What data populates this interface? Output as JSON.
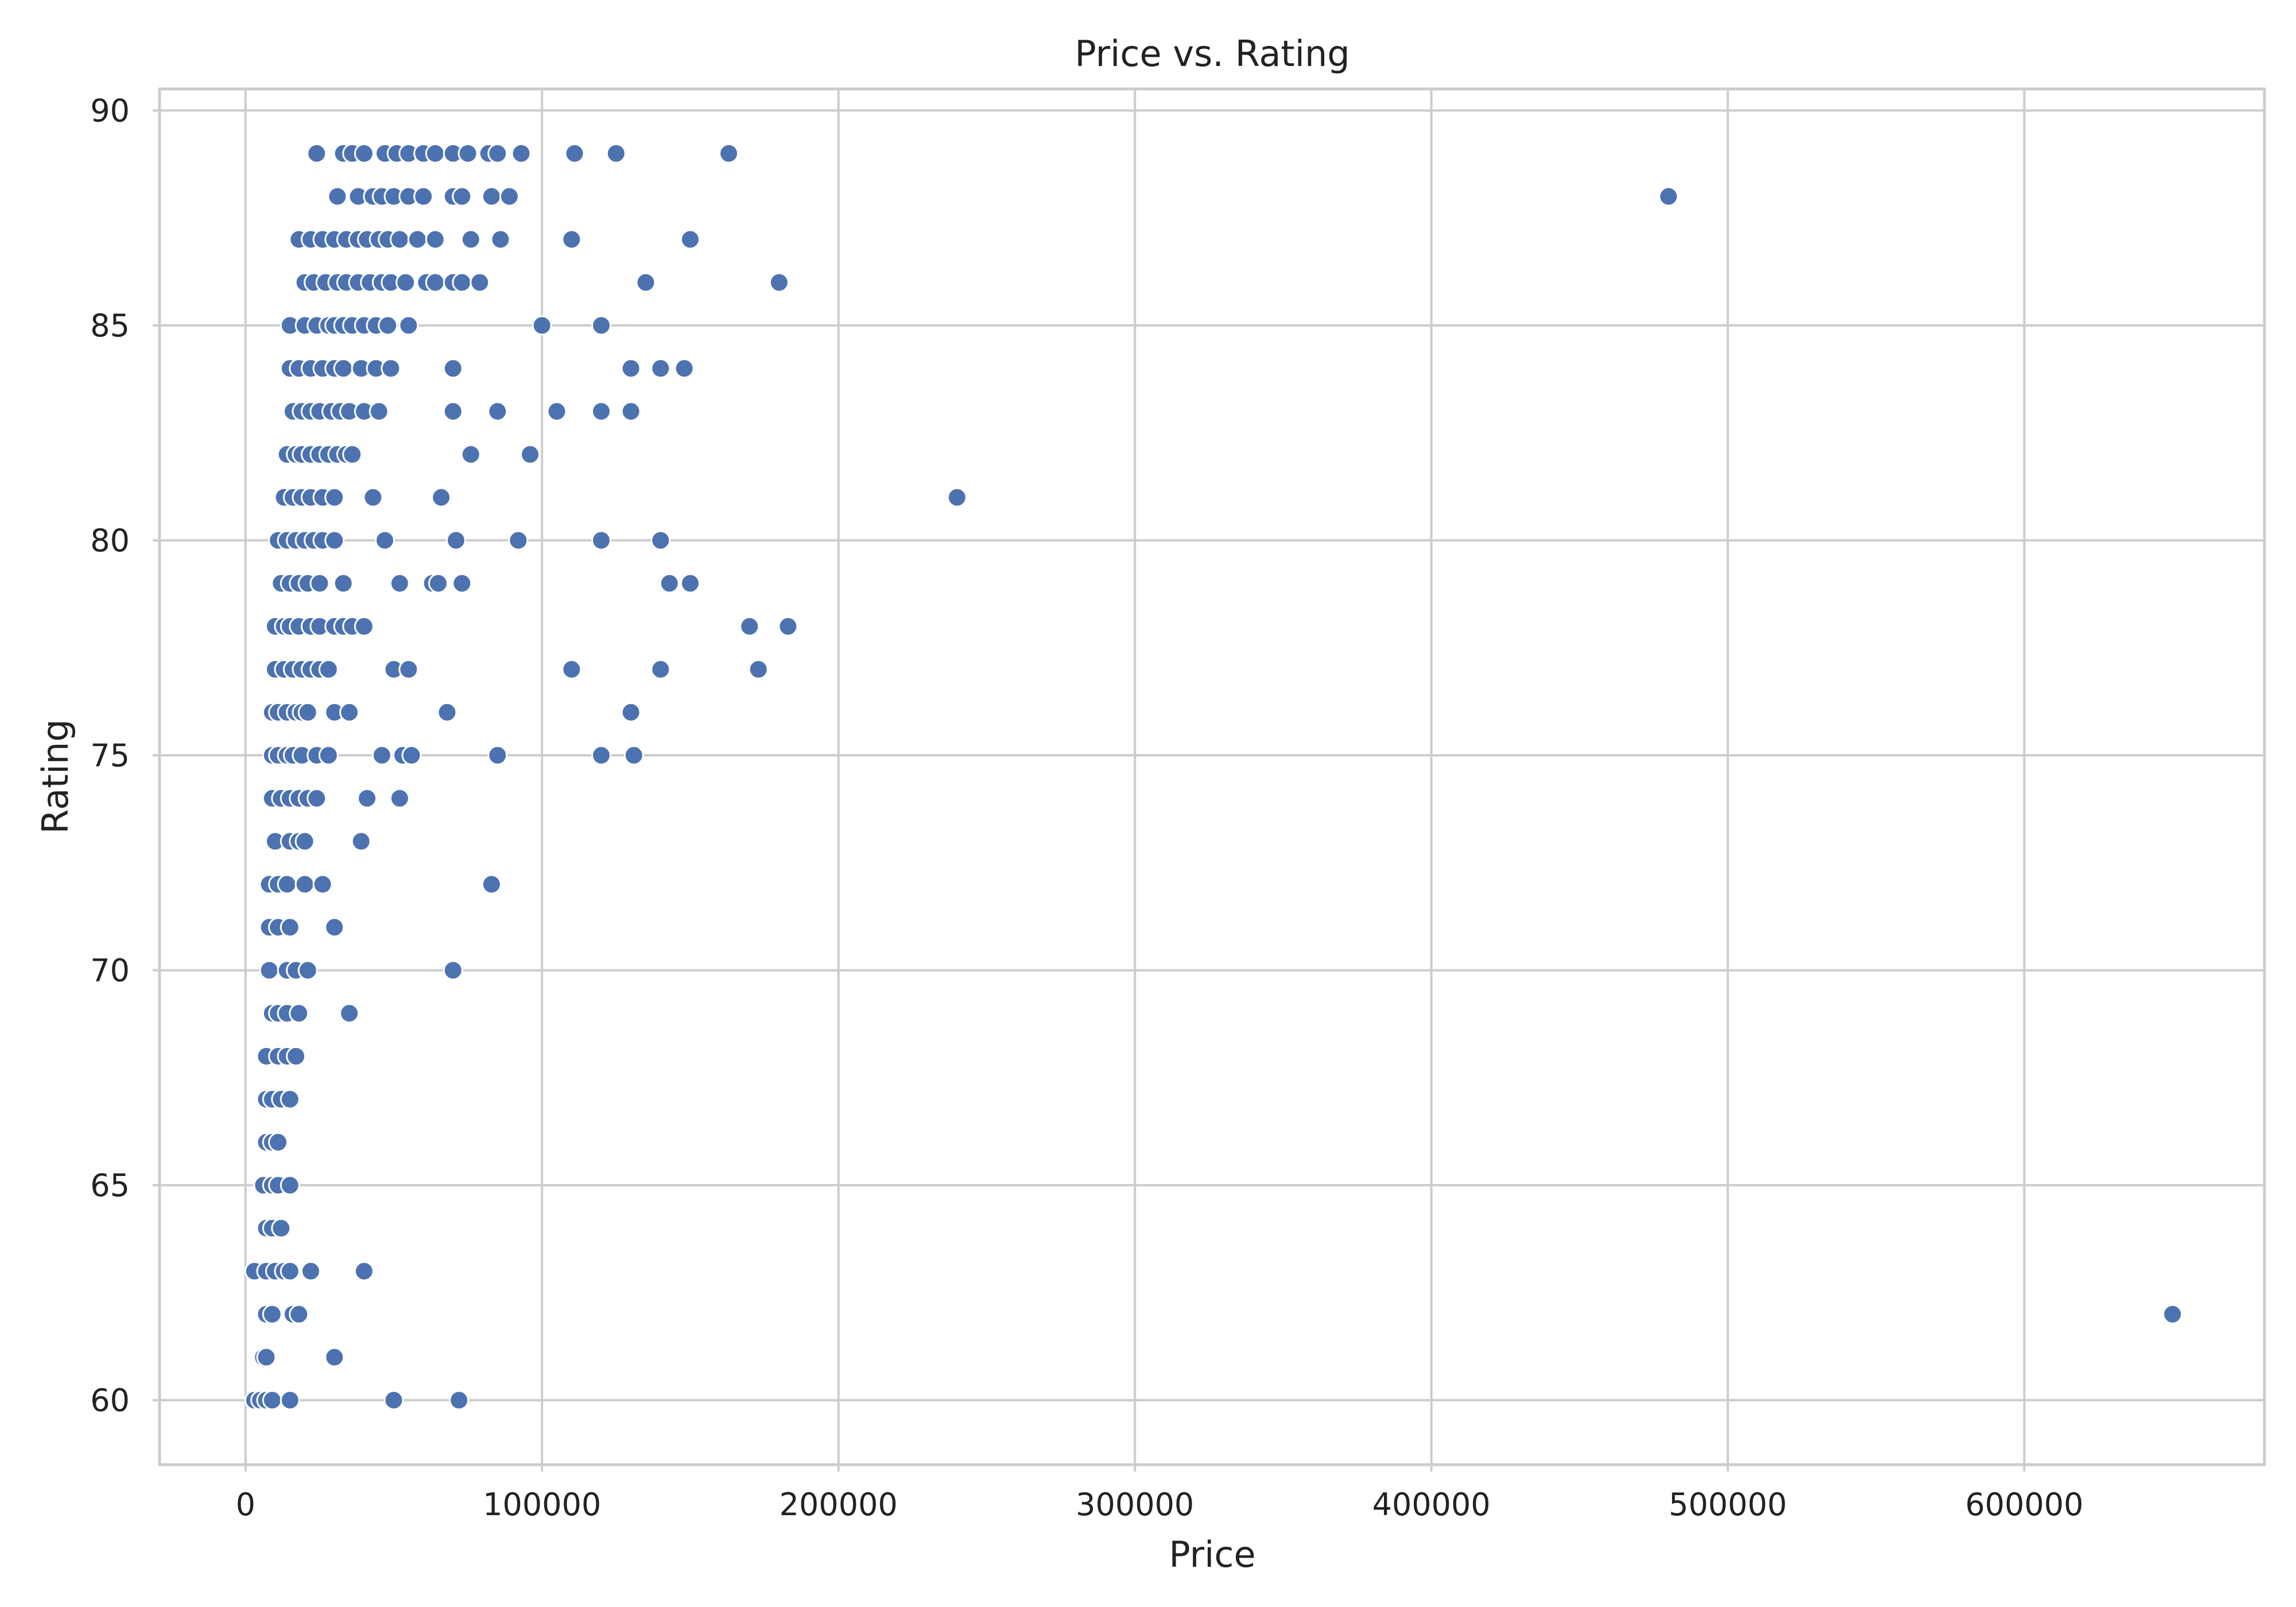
{
  "chart_data": {
    "type": "scatter",
    "title": "Price vs. Rating",
    "xlabel": "Price",
    "ylabel": "Rating",
    "xlim": [
      -29000,
      681000
    ],
    "ylim": [
      58.5,
      90.5
    ],
    "x_ticks": [
      "0",
      "100000",
      "200000",
      "300000",
      "400000",
      "500000",
      "600000"
    ],
    "x_tick_values": [
      0,
      100000,
      200000,
      300000,
      400000,
      500000,
      600000
    ],
    "y_ticks": [
      "60",
      "65",
      "70",
      "75",
      "80",
      "85",
      "90"
    ],
    "y_tick_values": [
      60,
      65,
      70,
      75,
      80,
      85,
      90
    ],
    "grid": true,
    "marker_color": "#4c72b0",
    "points": [
      [
        24000,
        89
      ],
      [
        33000,
        89
      ],
      [
        36000,
        89
      ],
      [
        40000,
        89
      ],
      [
        47000,
        89
      ],
      [
        51000,
        89
      ],
      [
        55000,
        89
      ],
      [
        60000,
        89
      ],
      [
        64000,
        89
      ],
      [
        70000,
        89
      ],
      [
        75000,
        89
      ],
      [
        82000,
        89
      ],
      [
        85000,
        89
      ],
      [
        93000,
        89
      ],
      [
        111000,
        89
      ],
      [
        125000,
        89
      ],
      [
        163000,
        89
      ],
      [
        31000,
        88
      ],
      [
        38000,
        88
      ],
      [
        43000,
        88
      ],
      [
        46000,
        88
      ],
      [
        50000,
        88
      ],
      [
        55000,
        88
      ],
      [
        60000,
        88
      ],
      [
        70000,
        88
      ],
      [
        73000,
        88
      ],
      [
        83000,
        88
      ],
      [
        89000,
        88
      ],
      [
        480000,
        88
      ],
      [
        18000,
        87
      ],
      [
        22000,
        87
      ],
      [
        26000,
        87
      ],
      [
        30000,
        87
      ],
      [
        34000,
        87
      ],
      [
        38000,
        87
      ],
      [
        41000,
        87
      ],
      [
        45000,
        87
      ],
      [
        48000,
        87
      ],
      [
        52000,
        87
      ],
      [
        58000,
        87
      ],
      [
        64000,
        87
      ],
      [
        76000,
        87
      ],
      [
        86000,
        87
      ],
      [
        110000,
        87
      ],
      [
        150000,
        87
      ],
      [
        20000,
        86
      ],
      [
        23000,
        86
      ],
      [
        27000,
        86
      ],
      [
        31000,
        86
      ],
      [
        34000,
        86
      ],
      [
        38000,
        86
      ],
      [
        42000,
        86
      ],
      [
        46000,
        86
      ],
      [
        49000,
        86
      ],
      [
        54000,
        86
      ],
      [
        61000,
        86
      ],
      [
        64000,
        86
      ],
      [
        70000,
        86
      ],
      [
        73000,
        86
      ],
      [
        79000,
        86
      ],
      [
        135000,
        86
      ],
      [
        180000,
        86
      ],
      [
        15000,
        85
      ],
      [
        20000,
        85
      ],
      [
        24000,
        85
      ],
      [
        28000,
        85
      ],
      [
        30000,
        85
      ],
      [
        33000,
        85
      ],
      [
        36000,
        85
      ],
      [
        40000,
        85
      ],
      [
        44000,
        85
      ],
      [
        48000,
        85
      ],
      [
        55000,
        85
      ],
      [
        100000,
        85
      ],
      [
        120000,
        85
      ],
      [
        15000,
        84
      ],
      [
        18000,
        84
      ],
      [
        22000,
        84
      ],
      [
        26000,
        84
      ],
      [
        30000,
        84
      ],
      [
        33000,
        84
      ],
      [
        39000,
        84
      ],
      [
        44000,
        84
      ],
      [
        49000,
        84
      ],
      [
        70000,
        84
      ],
      [
        130000,
        84
      ],
      [
        140000,
        84
      ],
      [
        148000,
        84
      ],
      [
        16000,
        83
      ],
      [
        19000,
        83
      ],
      [
        22000,
        83
      ],
      [
        25000,
        83
      ],
      [
        29000,
        83
      ],
      [
        32000,
        83
      ],
      [
        35000,
        83
      ],
      [
        40000,
        83
      ],
      [
        45000,
        83
      ],
      [
        70000,
        83
      ],
      [
        85000,
        83
      ],
      [
        105000,
        83
      ],
      [
        120000,
        83
      ],
      [
        130000,
        83
      ],
      [
        14000,
        82
      ],
      [
        17000,
        82
      ],
      [
        19000,
        82
      ],
      [
        22000,
        82
      ],
      [
        25000,
        82
      ],
      [
        28000,
        82
      ],
      [
        31000,
        82
      ],
      [
        34000,
        82
      ],
      [
        36000,
        82
      ],
      [
        76000,
        82
      ],
      [
        96000,
        82
      ],
      [
        13000,
        81
      ],
      [
        16000,
        81
      ],
      [
        19000,
        81
      ],
      [
        22000,
        81
      ],
      [
        26000,
        81
      ],
      [
        30000,
        81
      ],
      [
        43000,
        81
      ],
      [
        66000,
        81
      ],
      [
        240000,
        81
      ],
      [
        11000,
        80
      ],
      [
        14000,
        80
      ],
      [
        17000,
        80
      ],
      [
        20000,
        80
      ],
      [
        23000,
        80
      ],
      [
        26000,
        80
      ],
      [
        30000,
        80
      ],
      [
        47000,
        80
      ],
      [
        71000,
        80
      ],
      [
        92000,
        80
      ],
      [
        120000,
        80
      ],
      [
        140000,
        80
      ],
      [
        12000,
        79
      ],
      [
        15000,
        79
      ],
      [
        18000,
        79
      ],
      [
        21000,
        79
      ],
      [
        25000,
        79
      ],
      [
        33000,
        79
      ],
      [
        52000,
        79
      ],
      [
        63000,
        79
      ],
      [
        65000,
        79
      ],
      [
        73000,
        79
      ],
      [
        143000,
        79
      ],
      [
        150000,
        79
      ],
      [
        10000,
        78
      ],
      [
        13000,
        78
      ],
      [
        15000,
        78
      ],
      [
        18000,
        78
      ],
      [
        22000,
        78
      ],
      [
        25000,
        78
      ],
      [
        30000,
        78
      ],
      [
        33000,
        78
      ],
      [
        36000,
        78
      ],
      [
        40000,
        78
      ],
      [
        170000,
        78
      ],
      [
        183000,
        78
      ],
      [
        10000,
        77
      ],
      [
        13000,
        77
      ],
      [
        16000,
        77
      ],
      [
        19000,
        77
      ],
      [
        22000,
        77
      ],
      [
        25000,
        77
      ],
      [
        28000,
        77
      ],
      [
        50000,
        77
      ],
      [
        55000,
        77
      ],
      [
        110000,
        77
      ],
      [
        140000,
        77
      ],
      [
        173000,
        77
      ],
      [
        9000,
        76
      ],
      [
        11000,
        76
      ],
      [
        14000,
        76
      ],
      [
        17000,
        76
      ],
      [
        19000,
        76
      ],
      [
        21000,
        76
      ],
      [
        30000,
        76
      ],
      [
        35000,
        76
      ],
      [
        68000,
        76
      ],
      [
        130000,
        76
      ],
      [
        9000,
        75
      ],
      [
        11000,
        75
      ],
      [
        14000,
        75
      ],
      [
        16000,
        75
      ],
      [
        19000,
        75
      ],
      [
        24000,
        75
      ],
      [
        28000,
        75
      ],
      [
        46000,
        75
      ],
      [
        53000,
        75
      ],
      [
        56000,
        75
      ],
      [
        85000,
        75
      ],
      [
        120000,
        75
      ],
      [
        131000,
        75
      ],
      [
        9000,
        74
      ],
      [
        12000,
        74
      ],
      [
        15000,
        74
      ],
      [
        18000,
        74
      ],
      [
        21000,
        74
      ],
      [
        24000,
        74
      ],
      [
        41000,
        74
      ],
      [
        52000,
        74
      ],
      [
        10000,
        73
      ],
      [
        15000,
        73
      ],
      [
        18000,
        73
      ],
      [
        20000,
        73
      ],
      [
        39000,
        73
      ],
      [
        8000,
        72
      ],
      [
        11000,
        72
      ],
      [
        14000,
        72
      ],
      [
        20000,
        72
      ],
      [
        26000,
        72
      ],
      [
        83000,
        72
      ],
      [
        8000,
        71
      ],
      [
        11000,
        71
      ],
      [
        15000,
        71
      ],
      [
        30000,
        71
      ],
      [
        8000,
        70
      ],
      [
        14000,
        70
      ],
      [
        17000,
        70
      ],
      [
        21000,
        70
      ],
      [
        70000,
        70
      ],
      [
        9000,
        69
      ],
      [
        11000,
        69
      ],
      [
        14000,
        69
      ],
      [
        18000,
        69
      ],
      [
        35000,
        69
      ],
      [
        7000,
        68
      ],
      [
        11000,
        68
      ],
      [
        14000,
        68
      ],
      [
        17000,
        68
      ],
      [
        7000,
        67
      ],
      [
        9000,
        67
      ],
      [
        12000,
        67
      ],
      [
        15000,
        67
      ],
      [
        7000,
        66
      ],
      [
        9000,
        66
      ],
      [
        11000,
        66
      ],
      [
        6000,
        65
      ],
      [
        9000,
        65
      ],
      [
        11000,
        65
      ],
      [
        15000,
        65
      ],
      [
        7000,
        64
      ],
      [
        9000,
        64
      ],
      [
        12000,
        64
      ],
      [
        3000,
        63
      ],
      [
        7000,
        63
      ],
      [
        10000,
        63
      ],
      [
        13000,
        63
      ],
      [
        15000,
        63
      ],
      [
        22000,
        63
      ],
      [
        40000,
        63
      ],
      [
        7000,
        62
      ],
      [
        9000,
        62
      ],
      [
        16000,
        62
      ],
      [
        18000,
        62
      ],
      [
        650000,
        62
      ],
      [
        6000,
        61
      ],
      [
        7000,
        61
      ],
      [
        30000,
        61
      ],
      [
        3000,
        60
      ],
      [
        5000,
        60
      ],
      [
        7000,
        60
      ],
      [
        9000,
        60
      ],
      [
        15000,
        60
      ],
      [
        50000,
        60
      ],
      [
        72000,
        60
      ]
    ]
  }
}
